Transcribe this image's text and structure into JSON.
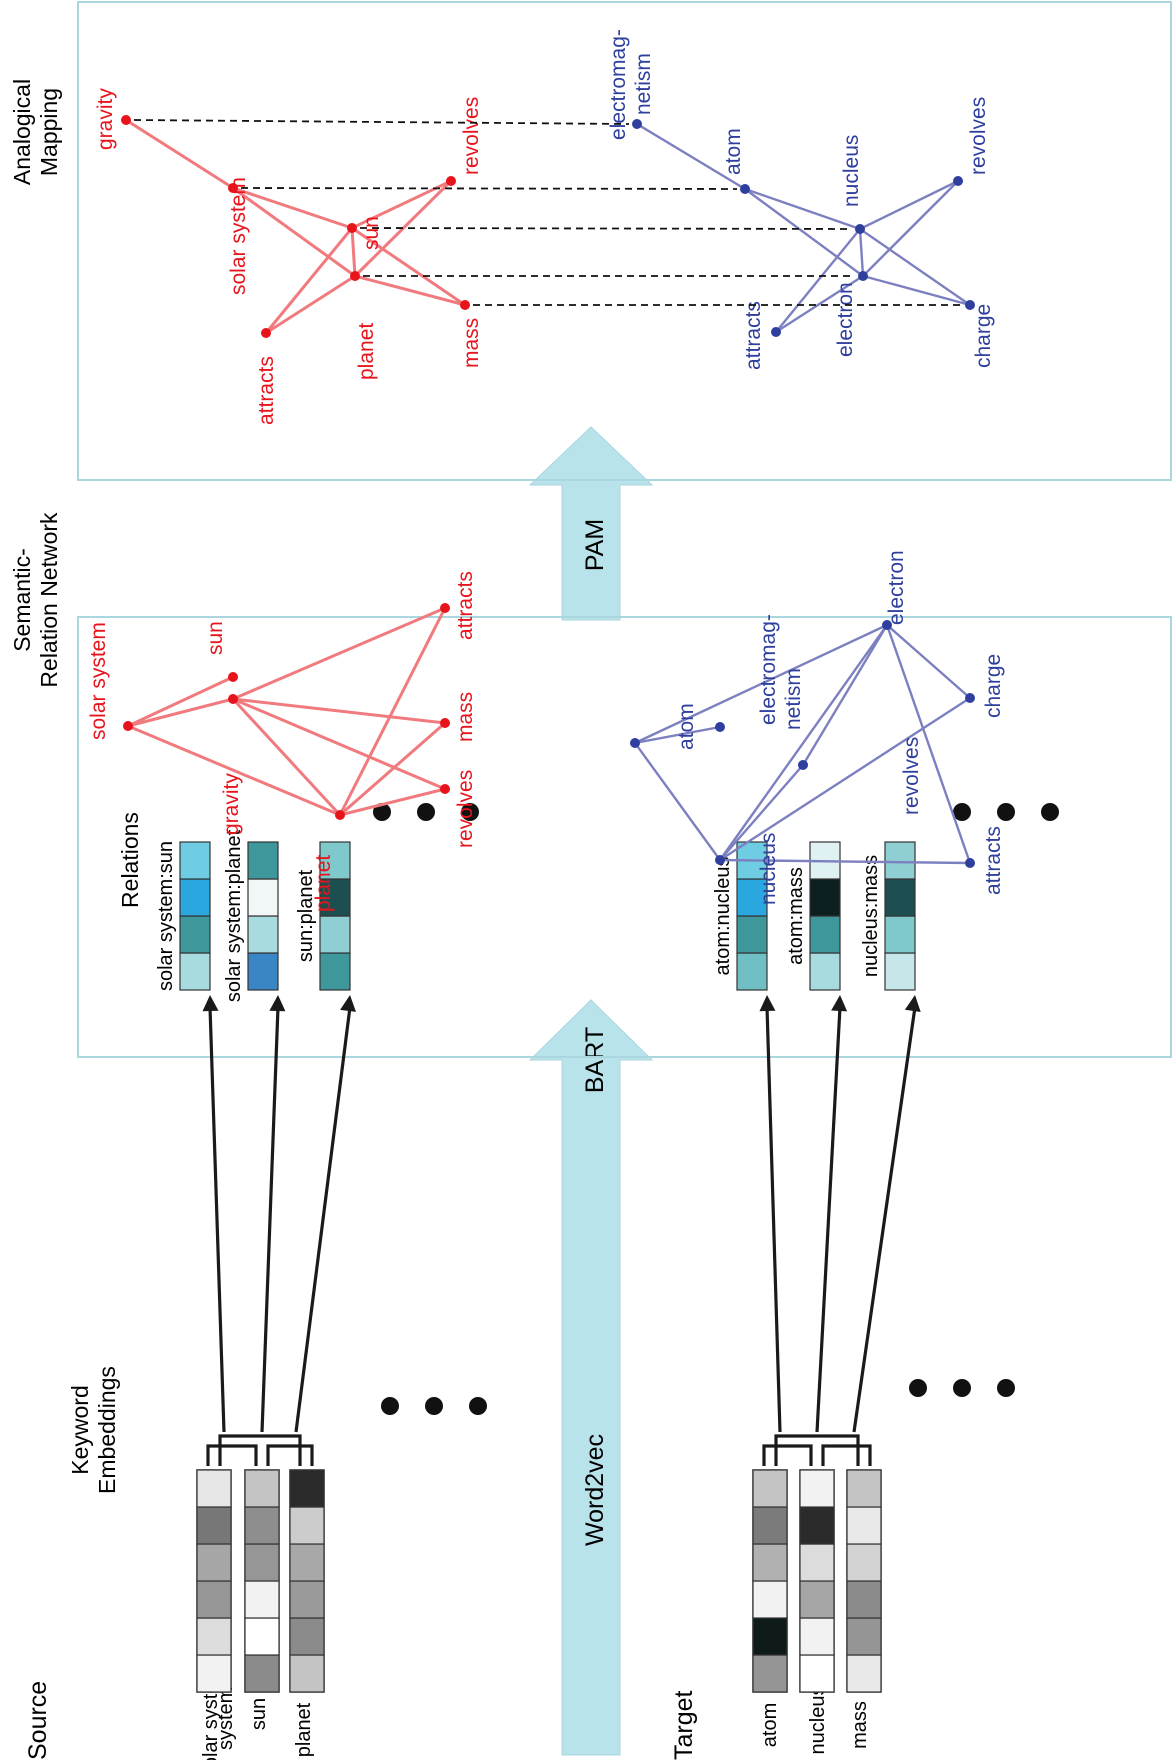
{
  "labels": {
    "source": "Source",
    "target": "Target",
    "keyword_embeddings_line1": "Keyword",
    "keyword_embeddings_line2": "Embeddings",
    "relations": "Relations",
    "semantic_line1": "Semantic-",
    "semantic_line2": "Relation Network",
    "analogical_line1": "Analogical",
    "analogical_line2": "Mapping",
    "word2vec": "Word2vec",
    "bart": "BART",
    "pam": "PAM"
  },
  "colors": {
    "source": "#e8141c",
    "target": "#2e3f9e",
    "source_edge": "#f07a7e",
    "target_edge": "#7d80c0",
    "arrow_fill": "#b9e3ea",
    "panel_border": "#a9d6df"
  },
  "embeddings": {
    "source_words": [
      "solar system",
      "sun",
      "planet"
    ],
    "target_words": [
      "atom",
      "nucleus",
      "mass"
    ],
    "source_grays": [
      [
        "#f2f2f2",
        "#dcdcdc",
        "#969696",
        "#a6a6a6",
        "#777777",
        "#e6e6e6"
      ],
      [
        "#8b8b8b",
        "#ffffff",
        "#f2f2f2",
        "#969696",
        "#8e8e8e",
        "#c4c4c4"
      ],
      [
        "#c4c4c4",
        "#8b8b8b",
        "#9a9a9a",
        "#a8a8a8",
        "#cccccc",
        "#2b2b2b"
      ]
    ],
    "target_grays": [
      [
        "#959595",
        "#0f1a1a",
        "#f2f2f2",
        "#b1b1b1",
        "#7b7b7b",
        "#c4c4c4"
      ],
      [
        "#ffffff",
        "#f2f2f2",
        "#a6a6a6",
        "#dcdcdc",
        "#2b2b2b",
        "#f2f2f2"
      ],
      [
        "#e9e9e9",
        "#959595",
        "#8b8b8b",
        "#d2d2d2",
        "#e9e9e9",
        "#c4c4c4"
      ]
    ]
  },
  "relations": {
    "source": [
      {
        "label": "solar system:sun",
        "colors": [
          "#a8dbe0",
          "#3e979b",
          "#2ba7e0",
          "#6fcde3"
        ]
      },
      {
        "label": "solar system:planet",
        "colors": [
          "#3a85c4",
          "#a8dbe0",
          "#f1f7f7",
          "#3e979b"
        ]
      },
      {
        "label": "sun:planet",
        "colors": [
          "#3e979b",
          "#8fcfd4",
          "#1d4e50",
          "#7fc8cc"
        ]
      }
    ],
    "target": [
      {
        "label": "atom:nucleus",
        "colors": [
          "#6fbfc4",
          "#3e979b",
          "#2ba7e0",
          "#6fcde3"
        ]
      },
      {
        "label": "atom:mass",
        "colors": [
          "#a8dbe0",
          "#3e979b",
          "#0d1f20",
          "#dff1f3"
        ]
      },
      {
        "label": "nucleus:mass",
        "colors": [
          "#c6e6ea",
          "#7fc8cc",
          "#1d4e50",
          "#8fcfd4"
        ]
      }
    ]
  },
  "semantic_network": {
    "source_nodes": [
      "solar system",
      "sun",
      "gravity",
      "planet",
      "attracts",
      "mass",
      "revolves"
    ],
    "target_nodes": [
      "atom",
      "electromag-",
      "netism",
      "nucleus",
      "revolves",
      "electron",
      "charge",
      "attracts"
    ]
  },
  "analogical_mapping": {
    "source_nodes": [
      "gravity",
      "solar system",
      "sun",
      "planet",
      "attracts",
      "revolves",
      "mass"
    ],
    "target_nodes": [
      "electromag-",
      "netism",
      "atom",
      "nucleus",
      "electron",
      "attracts",
      "revolves",
      "charge"
    ]
  }
}
